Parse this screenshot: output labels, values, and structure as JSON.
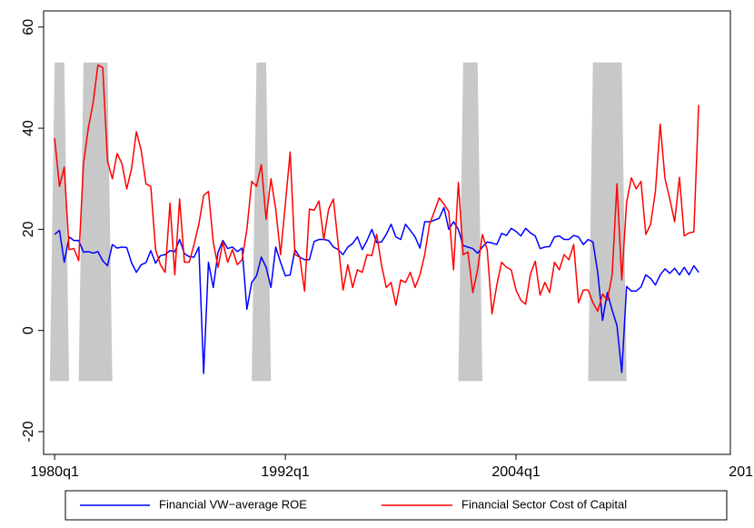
{
  "chart_data": {
    "type": "line",
    "x": [
      80,
      81,
      82,
      83,
      84,
      85,
      86,
      87,
      88,
      89,
      90,
      91,
      92,
      93,
      94,
      95,
      96,
      97,
      98,
      99,
      100,
      101,
      102,
      103,
      104,
      105,
      106,
      107,
      108,
      109,
      110,
      111,
      112,
      113,
      114,
      115,
      116,
      117,
      118,
      119,
      120,
      121,
      122,
      123,
      124,
      125,
      126,
      127,
      128,
      129,
      130,
      131,
      132,
      133,
      134,
      135,
      136,
      137,
      138,
      139,
      140,
      141,
      142,
      143,
      144,
      145,
      146,
      147,
      148,
      149,
      150,
      151,
      152,
      153,
      154,
      155,
      156,
      157,
      158,
      159,
      160,
      161,
      162,
      163,
      164,
      165,
      166,
      167,
      168,
      169,
      170,
      171,
      172,
      173,
      174,
      175,
      176,
      177,
      178,
      179,
      180,
      181,
      182,
      183,
      184,
      185,
      186,
      187,
      188,
      189,
      190,
      191,
      192,
      193,
      194,
      195,
      196,
      197,
      198,
      199,
      200,
      201,
      202,
      203,
      204,
      205,
      206,
      207,
      208,
      209,
      210,
      211,
      212,
      213,
      214
    ],
    "series": [
      {
        "name": "Financial VW−average ROE",
        "color": "#0000ff",
        "values": [
          19,
          19.8,
          13.5,
          18.5,
          17.8,
          17.8,
          15.5,
          15.6,
          15.3,
          15.6,
          13.8,
          12.8,
          17,
          16.3,
          16.5,
          16.4,
          13.4,
          11.5,
          13,
          13.4,
          15.8,
          13.3,
          14.8,
          15,
          15.8,
          15.6,
          18,
          15.2,
          14.6,
          14.5,
          16.5,
          -8.5,
          13.5,
          8.5,
          15.5,
          17.8,
          16.2,
          16.5,
          15.6,
          16.3,
          4.2,
          9.5,
          10.8,
          14.5,
          12.5,
          8.5,
          16.5,
          13.5,
          10.8,
          11,
          16,
          14.5,
          14,
          14,
          17.6,
          18,
          18,
          17.8,
          16.5,
          16,
          15,
          16.5,
          17.2,
          18.5,
          16,
          17.8,
          20,
          17.4,
          17.5,
          19,
          21,
          18.5,
          18,
          21,
          19.8,
          18.5,
          16.3,
          21.5,
          21.5,
          21.8,
          22.2,
          24.3,
          20,
          21.5,
          20,
          16.8,
          16.5,
          16.2,
          15.3,
          16.5,
          17.5,
          17.3,
          17,
          19.2,
          18.8,
          20.2,
          19.6,
          18.7,
          20.2,
          19.3,
          18.7,
          16.2,
          16.5,
          16.6,
          18.5,
          18.7,
          18,
          18,
          18.8,
          18.5,
          17,
          18,
          17.5,
          11.5,
          2,
          7.5,
          4,
          1,
          -8.3,
          8.7,
          7.8,
          7.8,
          8.6,
          11,
          10.3,
          9,
          11,
          12.2,
          11.3,
          12.3,
          11,
          12.5,
          11,
          12.8,
          11.5
        ]
      },
      {
        "name": "Financial Sector Cost of Capital",
        "color": "#ff0000",
        "values": [
          38,
          28.5,
          32.3,
          16,
          16.2,
          13.8,
          33,
          40,
          45,
          52.5,
          52,
          33.5,
          30,
          35,
          33,
          28,
          32,
          39.3,
          35.7,
          29,
          28.5,
          16,
          13,
          11.5,
          25.2,
          11,
          26,
          13.5,
          13.5,
          17,
          21,
          26.7,
          27.5,
          17.5,
          12.5,
          17.5,
          13.5,
          16,
          13,
          14,
          20,
          29.5,
          28.5,
          32.8,
          22,
          30,
          24,
          15,
          25,
          35.3,
          15,
          14.5,
          7.8,
          24,
          23.8,
          25.6,
          18,
          24,
          26,
          17,
          8,
          13,
          8.5,
          12,
          11.5,
          15,
          14.8,
          19,
          13,
          8.5,
          9.5,
          5,
          10,
          9.5,
          11.5,
          8.5,
          11,
          15,
          21,
          23.5,
          26.2,
          25,
          23.5,
          12,
          29.3,
          15,
          15.5,
          7.5,
          12,
          19,
          16,
          3.3,
          9,
          13.5,
          12.5,
          12,
          8,
          6,
          5.2,
          11.2,
          13.7,
          7,
          9.5,
          7.5,
          13.5,
          12,
          15,
          14,
          17,
          5.5,
          8,
          8,
          5.5,
          3.8,
          7.2,
          6,
          11,
          29,
          10,
          25.3,
          30.2,
          28,
          29.5,
          19,
          21,
          27.5,
          40.8,
          30,
          26,
          21.5,
          30.3,
          18.7,
          19.3,
          19.5,
          44.6
        ]
      }
    ],
    "shading": {
      "color": "#c8c8c8",
      "ylim": [
        -10,
        53
      ],
      "periods": [
        [
          80,
          82
        ],
        [
          86,
          91
        ],
        [
          122,
          124
        ],
        [
          165,
          168
        ],
        [
          192,
          198
        ]
      ]
    },
    "xlim": [
      77.7,
      220.6
    ],
    "ylim": [
      -24.5,
      63.2
    ],
    "xticks": [
      {
        "value": 80,
        "label": "1980q1"
      },
      {
        "value": 128,
        "label": "1992q1"
      },
      {
        "value": 176,
        "label": "2004q1"
      },
      {
        "value": 224,
        "label": "201"
      }
    ],
    "yticks": [
      -20,
      0,
      20,
      40,
      60
    ],
    "grid": false,
    "legend": "bottom"
  }
}
